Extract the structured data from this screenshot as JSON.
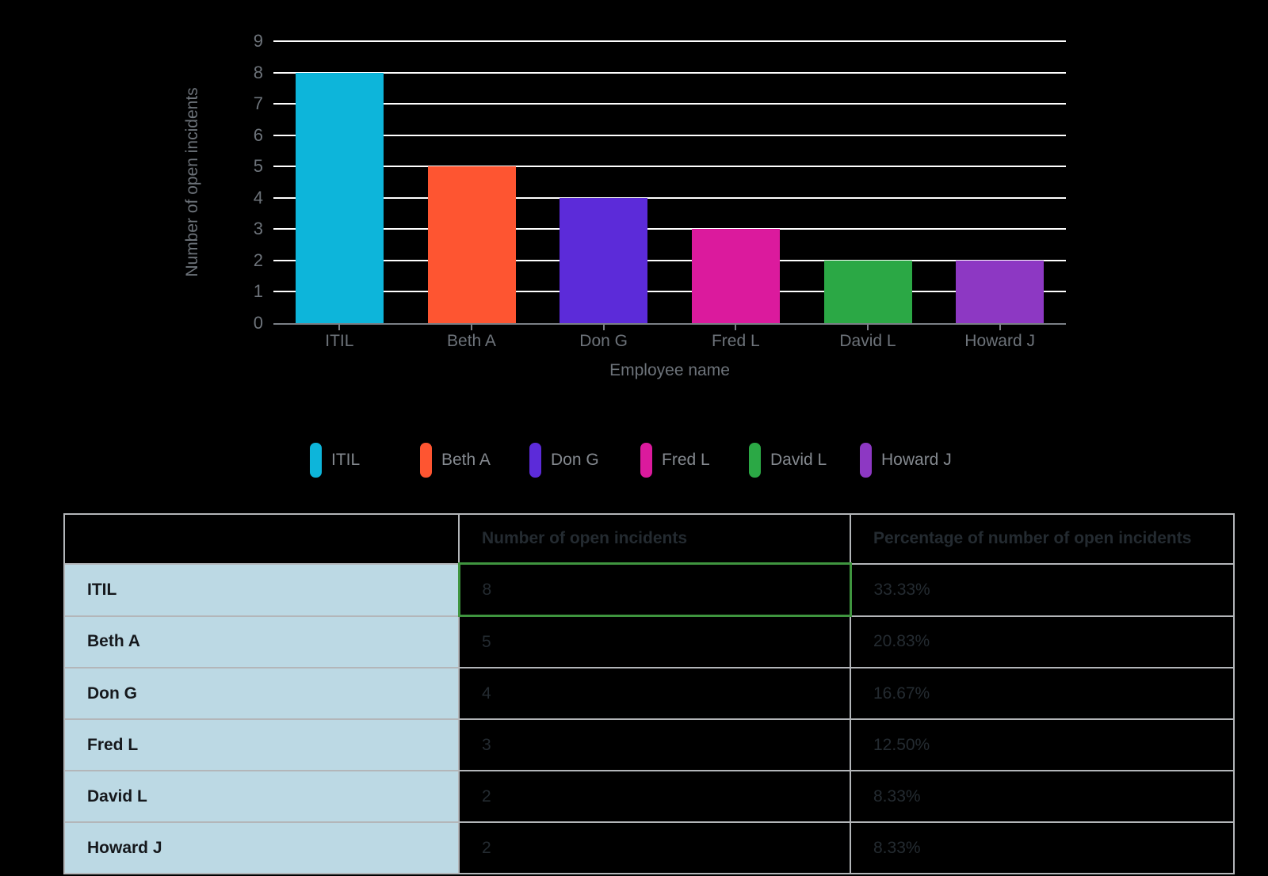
{
  "chart_data": {
    "type": "bar",
    "categories": [
      "ITIL",
      "Beth A",
      "Don G",
      "Fred L",
      "David L",
      "Howard J"
    ],
    "values": [
      8,
      5,
      4,
      3,
      2,
      2
    ],
    "colors": [
      "#0db5da",
      "#fe5531",
      "#5c2bd9",
      "#db1a9d",
      "#2ba845",
      "#8d38c3"
    ],
    "title": "",
    "xlabel": "Employee name",
    "ylabel": "Number of open incidents",
    "ylim": [
      0,
      9
    ],
    "ytick_step": 1,
    "grid": true,
    "legend_position": "bottom"
  },
  "legend": {
    "items": [
      {
        "label": "ITIL",
        "color": "#0db5da"
      },
      {
        "label": "Beth A",
        "color": "#fe5531"
      },
      {
        "label": "Don G",
        "color": "#5c2bd9"
      },
      {
        "label": "Fred L",
        "color": "#db1a9d"
      },
      {
        "label": "David L",
        "color": "#2ba845"
      },
      {
        "label": "Howard J",
        "color": "#8d38c3"
      }
    ]
  },
  "table": {
    "headers": [
      "",
      "Number of open incidents",
      "Percentage of number of open incidents"
    ],
    "rows": [
      {
        "label": "ITIL",
        "incidents": "8",
        "percentage": "33.33%"
      },
      {
        "label": "Beth A",
        "incidents": "5",
        "percentage": "20.83%"
      },
      {
        "label": "Don G",
        "incidents": "4",
        "percentage": "16.67%"
      },
      {
        "label": "Fred L",
        "incidents": "3",
        "percentage": "12.50%"
      },
      {
        "label": "David L",
        "incidents": "2",
        "percentage": "8.33%"
      },
      {
        "label": "Howard J",
        "incidents": "2",
        "percentage": "8.33%"
      }
    ],
    "selected": {
      "row": 0,
      "column": 1
    }
  },
  "colors": {
    "background": "#000000",
    "grid_line": "#ffffff",
    "axis_line": "#7b8086",
    "tick_label_text": "#6d737a",
    "legend_label_text": "#84898f",
    "table_border": "#b3b6b9",
    "table_header_text": "#242b31",
    "row_header_bg": "#bcd9e4",
    "row_header_text": "#15181c",
    "data_cell_text": "#242b31",
    "selected_cell_border": "#3f953f"
  }
}
